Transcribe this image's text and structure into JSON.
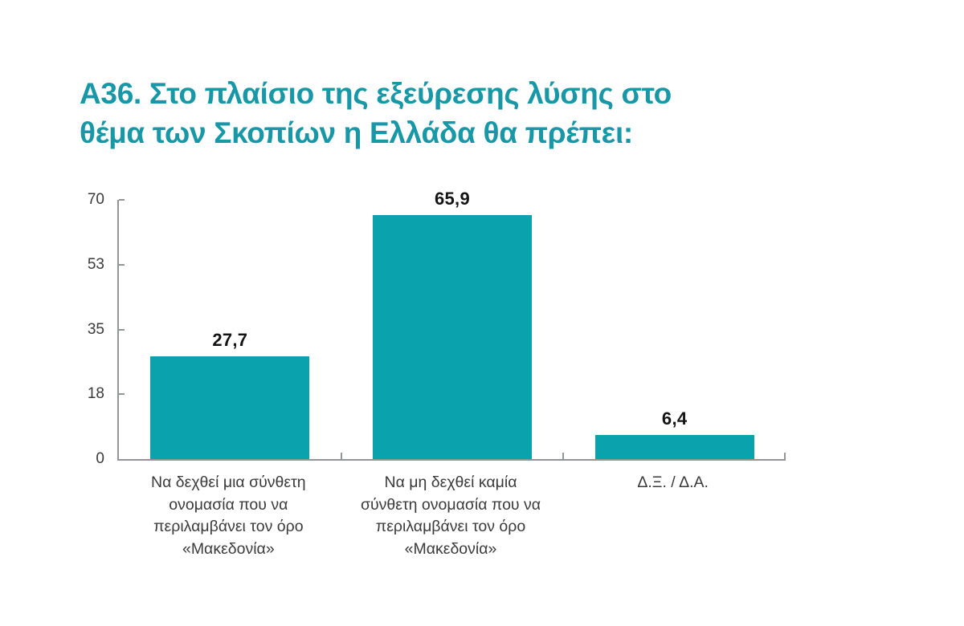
{
  "page": {
    "background": "#ffffff"
  },
  "chart_data": {
    "type": "bar",
    "title": "Α36. Στο πλαίσιο της εξεύρεσης λύσης στο\nθέμα των Σκοπίων η Ελλάδα θα πρέπει:",
    "categories": [
      "Να δεχθεί μια σύνθετη\nονομασία που να\nπεριλαμβάνει τον όρο\n«Μακεδονία»",
      "Να μη δεχθεί καμία\nσύνθετη ονομασία που να\nπεριλαμβάνει τον όρο\n«Μακεδονία»",
      "Δ.Ξ. / Δ.Α."
    ],
    "values": [
      27.7,
      65.9,
      6.4
    ],
    "value_labels": [
      "27,7",
      "65,9",
      "6,4"
    ],
    "xlabel": "",
    "ylabel": "",
    "ylim": [
      0,
      70
    ],
    "ytick_labels": [
      "0",
      "18",
      "35",
      "53",
      "70"
    ],
    "grid": false,
    "legend": "none",
    "colors": {
      "bar": "#0AA2AD",
      "title": "#1897A7",
      "axis": "#929497",
      "tick_label": "#3A3A3A",
      "value_label": "#141414"
    }
  }
}
